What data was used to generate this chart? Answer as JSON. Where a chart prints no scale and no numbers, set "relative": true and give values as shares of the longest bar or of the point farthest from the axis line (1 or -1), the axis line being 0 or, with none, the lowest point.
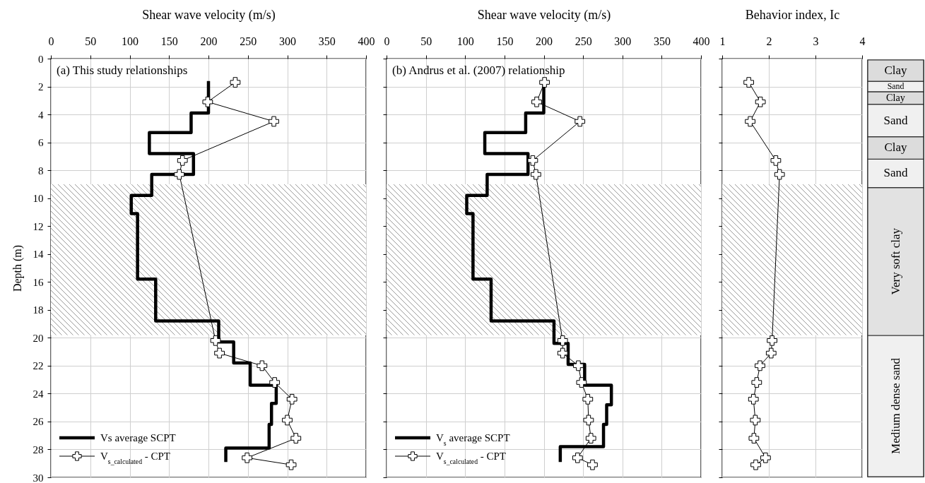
{
  "chart_data": [
    {
      "type": "line",
      "xlabel": "Shear wave velocity (m/s)",
      "ylabel": "Depth (m)",
      "xlim": [
        0,
        400
      ],
      "xticks": [
        0,
        50,
        100,
        150,
        200,
        250,
        300,
        350,
        400
      ],
      "ylim": [
        30,
        0
      ],
      "yticks": [
        0,
        2,
        4,
        6,
        8,
        10,
        12,
        14,
        16,
        18,
        20,
        22,
        24,
        26,
        28,
        30
      ],
      "grid": true,
      "legend": "bottom left",
      "marker": "cross",
      "annotations": [
        "(a) This study relationships"
      ],
      "bands": [
        {
          "axis": "y",
          "from": 9,
          "to": 19.8,
          "color": "#9a9a9a"
        }
      ],
      "series": [
        {
          "name": "Vs average SCPT",
          "color": "#000000",
          "marker": "none",
          "x": [
            200,
            200,
            178,
            178,
            125,
            125,
            181,
            181,
            128,
            128,
            102,
            102,
            110,
            110,
            133,
            133,
            213,
            213,
            232,
            232,
            253,
            253,
            286,
            286,
            280,
            280,
            277,
            277,
            222,
            222
          ],
          "values": [
            1.6,
            3.9,
            3.9,
            5.3,
            5.3,
            6.8,
            6.8,
            8.3,
            8.3,
            9.8,
            9.8,
            11.1,
            11.1,
            15.8,
            15.8,
            18.8,
            18.8,
            20.3,
            20.3,
            21.8,
            21.8,
            23.4,
            23.4,
            24.7,
            24.7,
            26.2,
            26.2,
            27.9,
            27.9,
            28.9
          ]
        },
        {
          "name": "V$_{s_calculated}$ - CPT",
          "color": "#000000",
          "x": [
            234,
            199,
            283,
            167,
            163,
            209,
            214,
            268,
            284,
            306,
            300,
            311,
            249,
            305
          ],
          "values": [
            1.7,
            3.1,
            4.5,
            7.3,
            8.3,
            20.2,
            21.1,
            22.0,
            23.2,
            24.4,
            25.9,
            27.2,
            28.6,
            29.1
          ]
        }
      ]
    },
    {
      "type": "line",
      "xlabel": "Shear wave velocity (m/s)",
      "xlim": [
        0,
        400
      ],
      "xticks": [
        0,
        50,
        100,
        150,
        200,
        250,
        300,
        350,
        400
      ],
      "ylim": [
        30,
        0
      ],
      "yticks": [
        0,
        2,
        4,
        6,
        8,
        10,
        12,
        14,
        16,
        18,
        20,
        22,
        24,
        26,
        28,
        30
      ],
      "grid": true,
      "legend": "bottom left",
      "marker": "cross",
      "tick_labels": "x",
      "annotations": [
        "(b) Andrus et al. (2007) relationship"
      ],
      "bands": [
        {
          "axis": "y",
          "from": 9,
          "to": 19.8,
          "color": "#9a9a9a"
        }
      ],
      "series": [
        {
          "name": "V$_{s}$ average SCPT",
          "color": "#000000",
          "marker": "none",
          "x": [
            200,
            200,
            177,
            177,
            125,
            125,
            180,
            180,
            128,
            128,
            102,
            102,
            110,
            110,
            133,
            133,
            213,
            213,
            231,
            231,
            252,
            252,
            286,
            286,
            280,
            280,
            276,
            276,
            221,
            221
          ],
          "values": [
            1.6,
            3.9,
            3.9,
            5.3,
            5.3,
            6.8,
            6.8,
            8.3,
            8.3,
            9.8,
            9.8,
            11.1,
            11.1,
            15.8,
            15.8,
            18.8,
            18.8,
            20.4,
            20.4,
            21.9,
            21.9,
            23.4,
            23.4,
            24.8,
            24.8,
            26.2,
            26.2,
            27.8,
            27.8,
            28.9
          ]
        },
        {
          "name": "V$_{s_calculated}$ - CPT",
          "color": "#000000",
          "x": [
            201,
            191,
            246,
            186,
            190,
            224,
            224,
            244,
            248,
            256,
            257,
            260,
            243,
            262
          ],
          "values": [
            1.7,
            3.1,
            4.5,
            7.3,
            8.3,
            20.2,
            21.1,
            22.0,
            23.2,
            24.4,
            25.9,
            27.2,
            28.6,
            29.1
          ]
        }
      ]
    },
    {
      "type": "line",
      "xlabel": "Behavior index, Ic",
      "xlim": [
        1,
        4
      ],
      "xticks": [
        1,
        2,
        3,
        4
      ],
      "ylim": [
        30,
        0
      ],
      "yticks": [
        0,
        2,
        4,
        6,
        8,
        10,
        12,
        14,
        16,
        18,
        20,
        22,
        24,
        26,
        28,
        30
      ],
      "grid": true,
      "marker": "cross",
      "tick_labels": "x",
      "bands": [
        {
          "axis": "y",
          "from": 9,
          "to": 19.8,
          "color": "#9a9a9a"
        }
      ],
      "series": [
        {
          "color": "#000000",
          "x": [
            1.57,
            1.82,
            1.6,
            2.15,
            2.23,
            2.07,
            2.05,
            1.81,
            1.74,
            1.67,
            1.71,
            1.68,
            1.93,
            1.72
          ],
          "values": [
            1.7,
            3.1,
            4.5,
            7.3,
            8.3,
            20.2,
            21.1,
            22.0,
            23.2,
            24.4,
            25.9,
            27.2,
            28.6,
            29.1
          ]
        }
      ]
    },
    {
      "type": "bar",
      "stacked": true,
      "relative": true,
      "categories": [
        null
      ],
      "tick_labels": false,
      "series": [
        {
          "name": "Medium dense sand",
          "color": "#f0f0f0",
          "values": [
            0.339
          ]
        },
        {
          "name": "Very soft clay",
          "color": "#e2e2e2",
          "values": [
            0.355
          ]
        },
        {
          "name": "Sand",
          "color": "#f0f0f0",
          "values": [
            0.068
          ]
        },
        {
          "name": "Clay",
          "color": "#dcdcdc",
          "values": [
            0.054
          ]
        },
        {
          "name": "Sand",
          "color": "#f0f0f0",
          "values": [
            0.078
          ]
        },
        {
          "name": "Clay",
          "color": "#dcdcdc",
          "values": [
            0.03
          ]
        },
        {
          "name": "Sand",
          "color": "#f0f0f0",
          "values": [
            0.025
          ]
        },
        {
          "name": "Clay",
          "color": "#dcdcdc",
          "values": [
            0.051
          ]
        }
      ]
    }
  ]
}
